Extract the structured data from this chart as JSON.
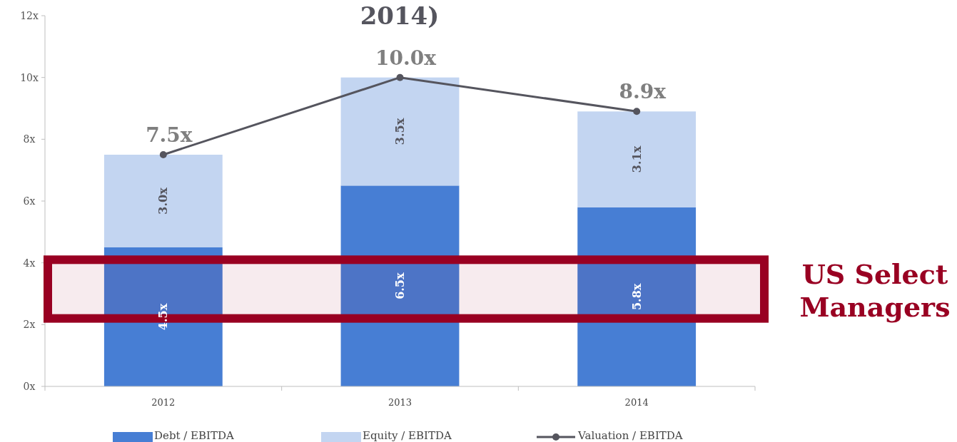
{
  "chart_data": {
    "type": "bar",
    "title": "2014)",
    "stacked": true,
    "categories": [
      "2012",
      "2013",
      "2014"
    ],
    "series": [
      {
        "name": "Debt / EBITDA",
        "color": "#477ed4",
        "values": [
          4.5,
          6.5,
          5.8
        ],
        "value_labels": [
          "4.5x",
          "6.5x",
          "5.8x"
        ]
      },
      {
        "name": "Equity / EBITDA",
        "color": "#c3d5f1",
        "values": [
          3.0,
          3.5,
          3.1
        ],
        "value_labels": [
          "3.0x",
          "3.5x",
          "3.1x"
        ]
      },
      {
        "name": "Valuation / EBITDA",
        "type": "line",
        "color": "#55555e",
        "values": [
          7.5,
          10.0,
          8.9
        ],
        "value_labels": [
          "7.5x",
          "10.0x",
          "8.9x"
        ],
        "marker": "circle"
      }
    ],
    "ylim": [
      0,
      12
    ],
    "yticks": [
      {
        "value": 0,
        "label": "0x"
      },
      {
        "value": 2,
        "label": "2x"
      },
      {
        "value": 4,
        "label": "4x"
      },
      {
        "value": 6,
        "label": "6x"
      },
      {
        "value": 8,
        "label": "8x"
      },
      {
        "value": 10,
        "label": "10x"
      },
      {
        "value": 12,
        "label": "12x"
      }
    ],
    "bands": [
      {
        "axis": "y",
        "from": 2.2,
        "to": 4.1,
        "label": "US Select Managers",
        "color": "#990022"
      }
    ],
    "grid": false,
    "legend": "bottom"
  }
}
